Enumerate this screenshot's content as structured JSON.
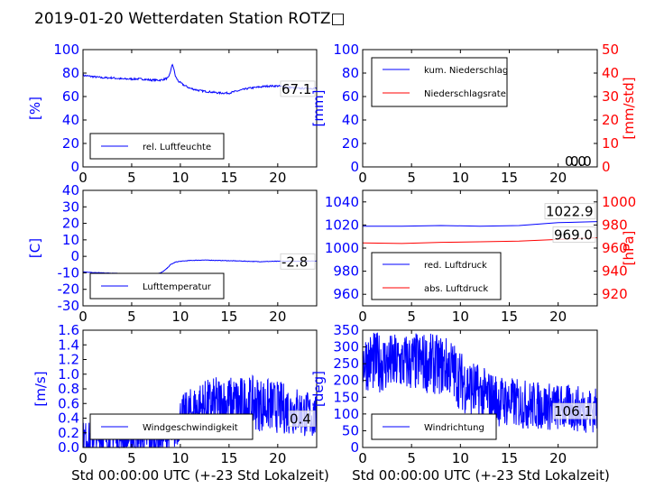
{
  "title": "2019-01-20 Wetterdaten Station ROTZ□",
  "x_label": "Std 00:00:00 UTC (+-23 Std Lokalzeit)",
  "colors": {
    "left_axis": "#0000ff",
    "right_axis": "#ff0000",
    "frame": "#000000"
  },
  "chart_data": [
    {
      "type": "line",
      "panel": "humidity",
      "xlim": [
        0,
        24
      ],
      "ylim": [
        0,
        100
      ],
      "xticks": [
        0,
        5,
        10,
        15,
        20
      ],
      "yticks": [
        0,
        20,
        40,
        60,
        80,
        100
      ],
      "ylabel": "[%]",
      "legend": "lower-left",
      "series": [
        {
          "name": "rel. Luftfeuchte",
          "color": "#0000ff",
          "noise": 0.8,
          "x": [
            0,
            1,
            2,
            3,
            4,
            5,
            6,
            7,
            8,
            8.8,
            9.2,
            9.5,
            9.8,
            10.3,
            11,
            12,
            13,
            14,
            15,
            16,
            17,
            18,
            19,
            20,
            21,
            22,
            23,
            24
          ],
          "y": [
            78,
            77,
            76,
            76,
            75,
            75,
            75,
            74,
            74,
            76,
            88,
            77,
            73,
            70,
            67,
            65,
            64,
            63,
            63,
            65,
            67,
            68,
            69,
            69,
            68,
            67,
            67,
            67
          ]
        }
      ],
      "last_value_label": "67.1"
    },
    {
      "type": "line",
      "panel": "precipitation",
      "xlim": [
        0,
        24
      ],
      "ylim": [
        0,
        100
      ],
      "y2lim": [
        0,
        50
      ],
      "xticks": [
        0,
        5,
        10,
        15,
        20
      ],
      "yticks": [
        0,
        20,
        40,
        60,
        80,
        100
      ],
      "y2ticks": [
        0,
        10,
        20,
        30,
        40,
        50
      ],
      "ylabel": "[mm]",
      "y2label": "[mm/std]",
      "legend": "upper-left",
      "series": [
        {
          "name": "kum. Niederschlag",
          "color": "#0000ff",
          "axis": "left",
          "x": [
            0,
            24
          ],
          "y": [
            0,
            0
          ]
        },
        {
          "name": "Niederschlagsrate",
          "color": "#ff0000",
          "axis": "right",
          "x": [
            0,
            24
          ],
          "y": [
            0,
            0
          ]
        }
      ],
      "value_labels": [
        "0.0",
        "0.0"
      ]
    },
    {
      "type": "line",
      "panel": "temperature",
      "xlim": [
        0,
        24
      ],
      "ylim": [
        -30,
        40
      ],
      "xticks": [
        0,
        5,
        10,
        15,
        20
      ],
      "yticks": [
        -30,
        -20,
        -10,
        0,
        10,
        20,
        30,
        40
      ],
      "ylabel": "[C]",
      "legend": "lower-left",
      "series": [
        {
          "name": "Lufttemperatur",
          "color": "#0000ff",
          "noise": 0.15,
          "x": [
            0,
            2,
            4,
            6,
            7,
            8,
            8.5,
            9,
            9.5,
            10,
            11,
            12,
            13,
            14,
            16,
            18,
            20,
            22,
            24
          ],
          "y": [
            -9.5,
            -10,
            -10.5,
            -10.8,
            -11,
            -10,
            -8,
            -5,
            -3.5,
            -3,
            -2.5,
            -2.3,
            -2.3,
            -2.5,
            -2.8,
            -3.2,
            -3,
            -2.9,
            -2.8
          ]
        }
      ],
      "last_value_label": "-2.8"
    },
    {
      "type": "line",
      "panel": "pressure",
      "xlim": [
        0,
        24
      ],
      "ylim": [
        950,
        1050
      ],
      "y2lim": [
        910,
        1010
      ],
      "xticks": [
        0,
        5,
        10,
        15,
        20
      ],
      "yticks": [
        960,
        980,
        1000,
        1020,
        1040
      ],
      "y2ticks": [
        920,
        940,
        960,
        980,
        1000
      ],
      "y2label": "[hPa]",
      "legend": "lower-left",
      "series": [
        {
          "name": "red. Luftdruck",
          "color": "#0000ff",
          "axis": "left",
          "x": [
            0,
            4,
            8,
            12,
            16,
            20,
            24
          ],
          "y": [
            1019,
            1019,
            1019.5,
            1019,
            1019.5,
            1022,
            1023
          ]
        },
        {
          "name": "abs. Luftdruck",
          "color": "#ff0000",
          "axis": "right",
          "x": [
            0,
            4,
            8,
            12,
            16,
            20,
            24
          ],
          "y": [
            964.5,
            964,
            965,
            965.5,
            966,
            967.5,
            969
          ]
        }
      ],
      "value_labels": [
        "1022.9",
        "969.0"
      ]
    },
    {
      "type": "line",
      "panel": "wind_speed",
      "xlim": [
        0,
        24
      ],
      "ylim": [
        0,
        1.6
      ],
      "xticks": [
        0,
        5,
        10,
        15,
        20
      ],
      "yticks": [
        0.0,
        0.2,
        0.4,
        0.6,
        0.8,
        1.0,
        1.2,
        1.4,
        1.6
      ],
      "ylabel": "[m/s]",
      "legend": "lower-left",
      "series": [
        {
          "name": "Windgeschwindigkeit",
          "color": "#0000ff",
          "noise": 0.45,
          "spiky": true,
          "x": [
            0,
            2,
            4,
            6,
            8,
            9.5,
            10,
            12,
            14,
            16,
            18,
            20,
            22,
            24
          ],
          "y": [
            0.15,
            0.12,
            0.12,
            0.1,
            0.12,
            0.2,
            0.4,
            0.55,
            0.6,
            0.6,
            0.6,
            0.55,
            0.5,
            0.4
          ]
        }
      ],
      "last_value_label": "0.4"
    },
    {
      "type": "line",
      "panel": "wind_direction",
      "xlim": [
        0,
        24
      ],
      "ylim": [
        0,
        350
      ],
      "xticks": [
        0,
        5,
        10,
        15,
        20
      ],
      "yticks": [
        0,
        50,
        100,
        150,
        200,
        250,
        300,
        350
      ],
      "ylabel": "[deg]",
      "legend": "lower-left",
      "series": [
        {
          "name": "Windrichtung",
          "color": "#0000ff",
          "noise": 90,
          "spiky": true,
          "x": [
            0,
            3,
            6,
            9,
            10,
            12,
            14,
            16,
            18,
            20,
            22,
            24
          ],
          "y": [
            260,
            250,
            255,
            240,
            200,
            160,
            140,
            130,
            125,
            120,
            115,
            110
          ]
        }
      ],
      "last_value_label": "106.1"
    }
  ]
}
